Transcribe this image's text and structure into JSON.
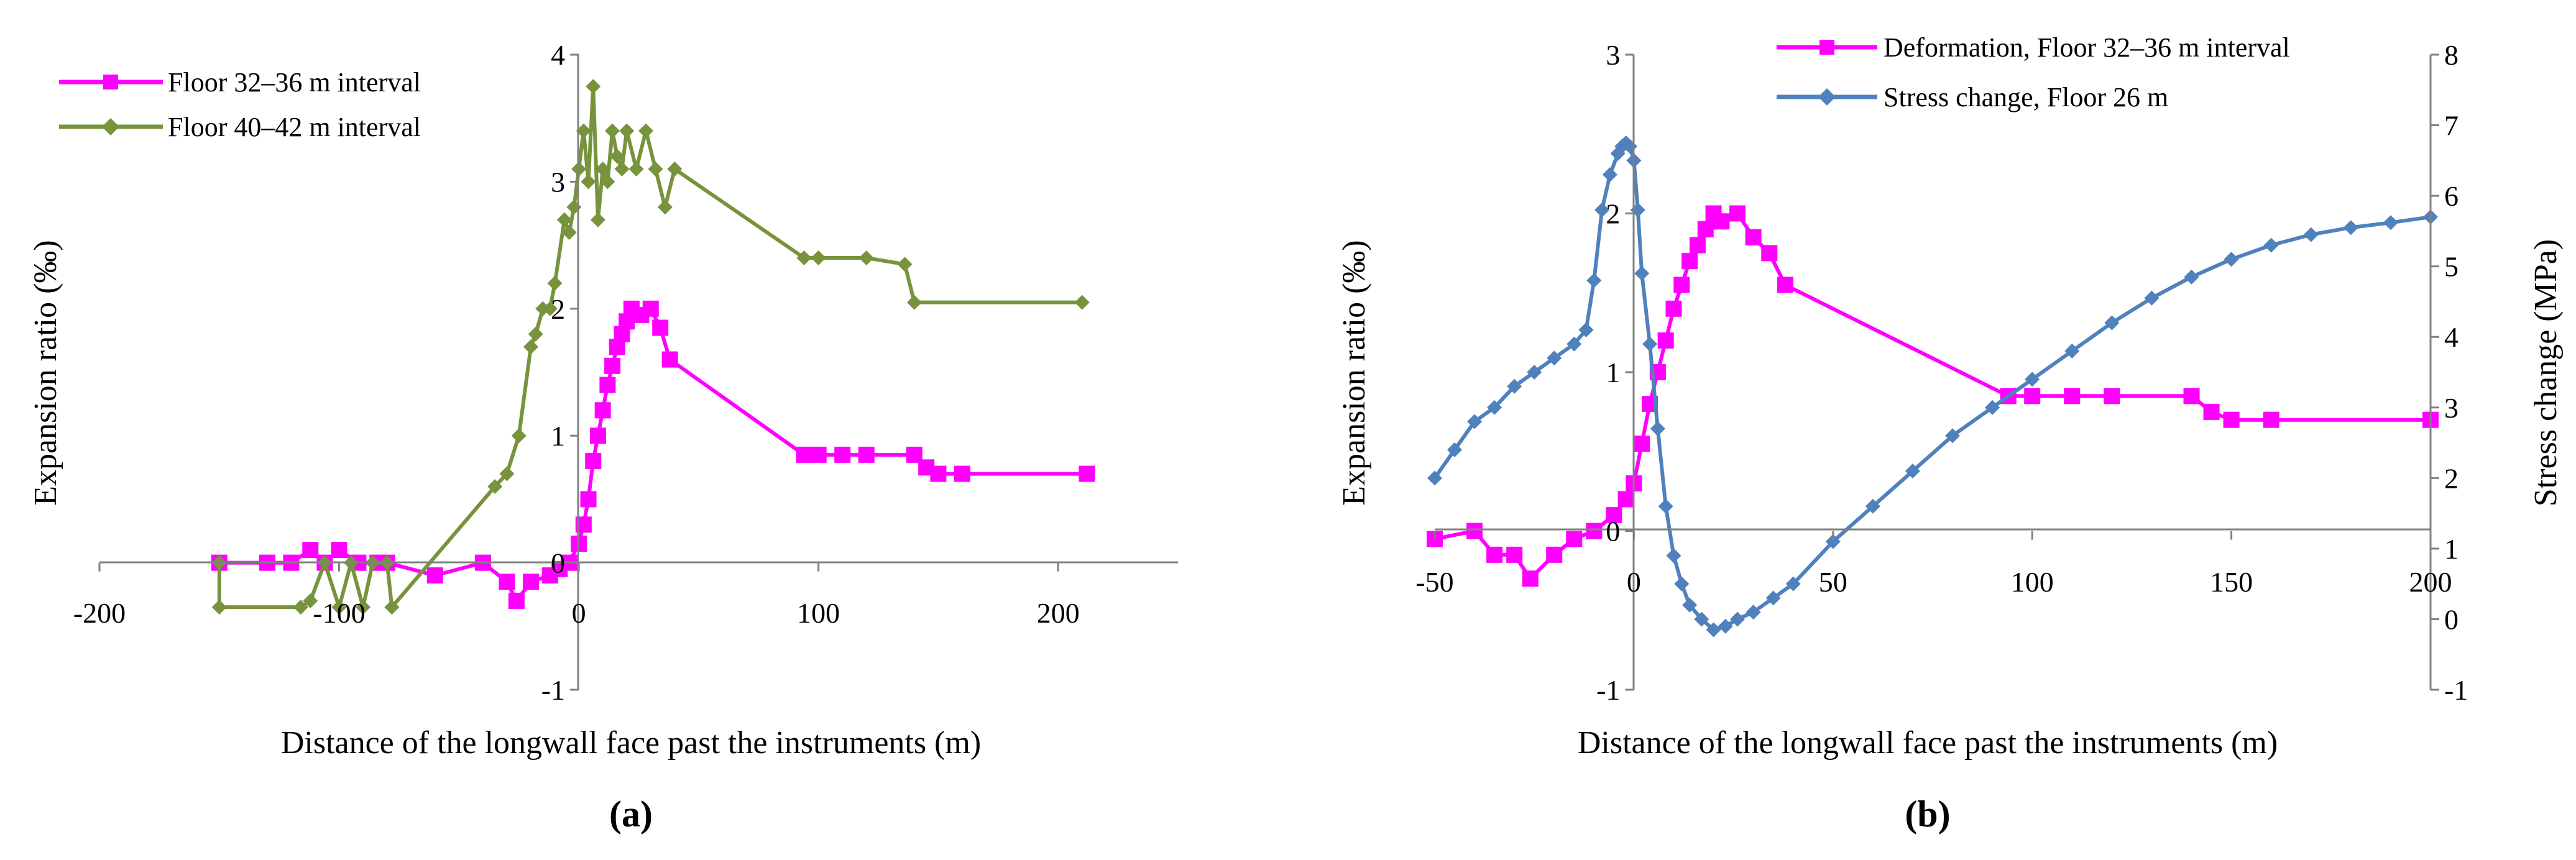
{
  "chart_data": [
    {
      "panel_label": "(a)",
      "type": "line",
      "xlabel": "Distance of the longwall face past the instruments (m)",
      "ylabel": "Expansion ratio (‰)",
      "xlim": [
        -200,
        250
      ],
      "ylim": [
        -1,
        4
      ],
      "xticks": [
        -200,
        -100,
        0,
        100,
        200
      ],
      "yticks": [
        -1,
        0,
        1,
        2,
        3,
        4
      ],
      "legend_position": "top-left",
      "series": [
        {
          "name": "Floor 32–36 m interval",
          "color": "#ff00ff",
          "marker": "square",
          "x": [
            -150,
            -130,
            -120,
            -112,
            -106,
            -100,
            -92,
            -84,
            -80,
            -60,
            -40,
            -30,
            -26,
            -20,
            -12,
            -8,
            -4,
            0,
            2,
            4,
            6,
            8,
            10,
            12,
            14,
            16,
            18,
            20,
            22,
            26,
            30,
            34,
            38,
            94,
            100,
            110,
            120,
            140,
            145,
            150,
            160,
            212
          ],
          "y": [
            0,
            0,
            0,
            0.1,
            0,
            0.1,
            0,
            0,
            0,
            -0.1,
            0,
            -0.15,
            -0.3,
            -0.15,
            -0.1,
            -0.05,
            0,
            0.15,
            0.3,
            0.5,
            0.8,
            1.0,
            1.2,
            1.4,
            1.55,
            1.7,
            1.8,
            1.9,
            2.0,
            1.95,
            2.0,
            1.85,
            1.6,
            0.85,
            0.85,
            0.85,
            0.85,
            0.85,
            0.75,
            0.7,
            0.7,
            0.7
          ]
        },
        {
          "name": "Floor 40–42 m interval",
          "color": "#77933c",
          "marker": "diamond",
          "x": [
            -150,
            -150,
            -116,
            -112,
            -106,
            -100,
            -95,
            -90,
            -86,
            -80,
            -78,
            -35,
            -30,
            -25,
            -20,
            -18,
            -15,
            -12,
            -10,
            -6,
            -4,
            -2,
            0,
            2,
            4,
            6,
            8,
            10,
            12,
            14,
            16,
            18,
            20,
            24,
            28,
            32,
            36,
            40,
            94,
            100,
            120,
            136,
            140,
            210
          ],
          "y": [
            0,
            -0.35,
            -0.35,
            -0.3,
            0,
            -0.35,
            0,
            -0.35,
            0,
            0,
            -0.35,
            0.6,
            0.7,
            1.0,
            1.7,
            1.8,
            2.0,
            2.0,
            2.2,
            2.7,
            2.6,
            2.8,
            3.1,
            3.4,
            3.0,
            3.75,
            2.7,
            3.1,
            3.0,
            3.4,
            3.2,
            3.1,
            3.4,
            3.1,
            3.4,
            3.1,
            2.8,
            3.1,
            2.4,
            2.4,
            2.4,
            2.35,
            2.05,
            2.05
          ]
        }
      ]
    },
    {
      "panel_label": "(b)",
      "type": "line",
      "xlabel": "Distance of the longwall face past the instruments (m)",
      "ylabel": "Expansion ratio (‰)",
      "y2label": "Stress change (MPa)",
      "xlim": [
        -50,
        200
      ],
      "ylim": [
        -1,
        3
      ],
      "y2lim": [
        -1,
        8
      ],
      "xticks": [
        -50,
        0,
        50,
        100,
        150,
        200
      ],
      "yticks": [
        -1,
        0,
        1,
        2,
        3
      ],
      "y2ticks": [
        -1,
        0,
        1,
        2,
        3,
        4,
        5,
        6,
        7,
        8
      ],
      "legend_position": "top-right",
      "series": [
        {
          "name": "Deformation, Floor 32–36 m interval",
          "color": "#ff00ff",
          "marker": "square",
          "axis": "left",
          "x": [
            -50,
            -40,
            -35,
            -30,
            -26,
            -20,
            -15,
            -10,
            -5,
            -2,
            0,
            2,
            4,
            6,
            8,
            10,
            12,
            14,
            16,
            18,
            20,
            22,
            26,
            30,
            34,
            38,
            94,
            100,
            110,
            120,
            140,
            145,
            150,
            160,
            200
          ],
          "y": [
            -0.05,
            0,
            -0.15,
            -0.15,
            -0.3,
            -0.15,
            -0.05,
            0,
            0.1,
            0.2,
            0.3,
            0.55,
            0.8,
            1.0,
            1.2,
            1.4,
            1.55,
            1.7,
            1.8,
            1.9,
            2.0,
            1.95,
            2.0,
            1.85,
            1.75,
            1.55,
            0.85,
            0.85,
            0.85,
            0.85,
            0.85,
            0.75,
            0.7,
            0.7,
            0.7
          ]
        },
        {
          "name": "Stress change, Floor 26 m",
          "color": "#4f81bd",
          "marker": "diamond",
          "axis": "right",
          "x": [
            -50,
            -45,
            -40,
            -35,
            -30,
            -25,
            -20,
            -15,
            -12,
            -10,
            -8,
            -6,
            -4,
            -3,
            -2,
            -1,
            0,
            1,
            2,
            4,
            6,
            8,
            10,
            12,
            14,
            17,
            20,
            23,
            26,
            30,
            35,
            40,
            50,
            60,
            70,
            80,
            90,
            100,
            110,
            120,
            130,
            140,
            150,
            160,
            170,
            180,
            190,
            200
          ],
          "y": [
            2.0,
            2.4,
            2.8,
            3.0,
            3.3,
            3.5,
            3.7,
            3.9,
            4.1,
            4.8,
            5.8,
            6.3,
            6.6,
            6.7,
            6.75,
            6.7,
            6.5,
            5.8,
            4.9,
            3.9,
            2.7,
            1.6,
            0.9,
            0.5,
            0.2,
            0.0,
            -0.15,
            -0.1,
            0.0,
            0.1,
            0.3,
            0.5,
            1.1,
            1.6,
            2.1,
            2.6,
            3.0,
            3.4,
            3.8,
            4.2,
            4.55,
            4.85,
            5.1,
            5.3,
            5.45,
            5.55,
            5.62,
            5.7
          ]
        }
      ]
    }
  ]
}
